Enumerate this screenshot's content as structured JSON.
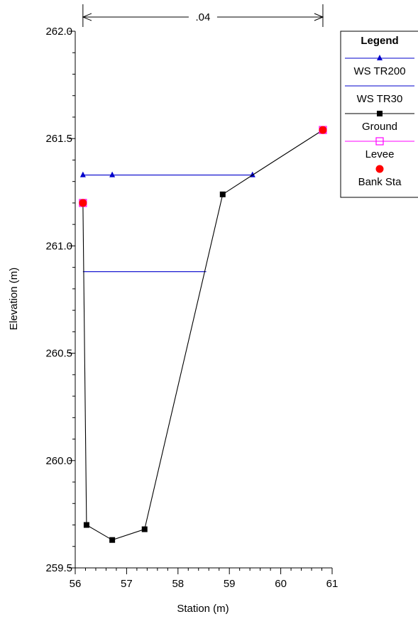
{
  "chart_data": {
    "type": "line",
    "xlabel": "Station (m)",
    "ylabel": "Elevation (m)",
    "xlim": [
      56,
      61
    ],
    "ylim": [
      259.5,
      262.0
    ],
    "x_ticks": [
      "56",
      "57",
      "58",
      "59",
      "60",
      "61"
    ],
    "y_ticks": [
      "259.5",
      "260.0",
      "260.5",
      "261.0",
      "261.5",
      "262.0"
    ],
    "manning_label": ".04",
    "manning_span": [
      56.15,
      60.82
    ],
    "legend_title": "Legend",
    "legend_placement": "right",
    "series": [
      {
        "name": "WS TR200",
        "color": "#0000cc",
        "marker": "triangle",
        "x": [
          56.15,
          56.72,
          59.45
        ],
        "y": [
          261.33,
          261.33,
          261.33
        ]
      },
      {
        "name": "WS TR30",
        "color": "#0000cc",
        "marker": "none",
        "x": [
          56.15,
          58.55
        ],
        "y": [
          260.88,
          260.88
        ]
      },
      {
        "name": "Ground",
        "color": "#000000",
        "marker": "square",
        "x": [
          56.15,
          56.22,
          56.72,
          57.35,
          58.87,
          59.45,
          60.82
        ],
        "y": [
          261.2,
          259.7,
          259.63,
          259.68,
          261.24,
          261.33,
          261.54
        ]
      },
      {
        "name": "Levee",
        "color": "#ff00ff",
        "marker": "open-square",
        "x": [
          56.15,
          60.82
        ],
        "y": [
          261.2,
          261.54
        ]
      },
      {
        "name": "Bank Sta",
        "color": "#ff0000",
        "marker": "circle",
        "x": [
          56.15,
          60.82
        ],
        "y": [
          261.2,
          261.54
        ]
      }
    ]
  }
}
